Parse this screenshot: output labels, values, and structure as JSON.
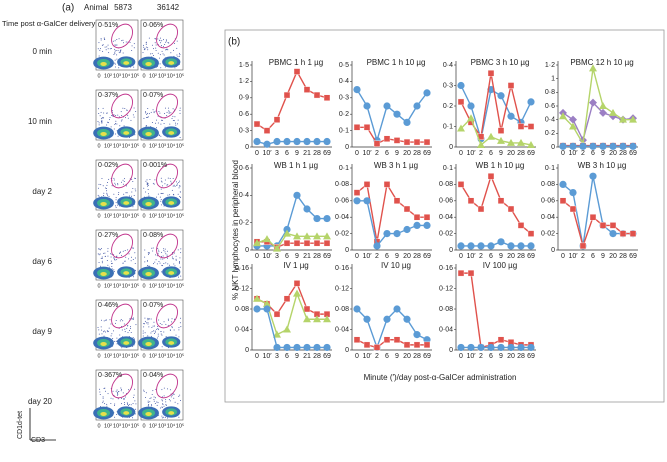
{
  "panel_a": {
    "label": "(a)",
    "animal_label": "Animal",
    "animals": [
      "5873",
      "36142"
    ],
    "time_header": "Time post α-GalCer delivery",
    "rows": [
      {
        "time": "0 min",
        "percents": [
          "0·51%",
          "0·06%"
        ]
      },
      {
        "time": "10 min",
        "percents": [
          "0·37%",
          "0·07%"
        ]
      },
      {
        "time": "day 2",
        "percents": [
          "0·02%",
          "0·001%"
        ]
      },
      {
        "time": "day 6",
        "percents": [
          "0·27%",
          "0·08%"
        ]
      },
      {
        "time": "day 9",
        "percents": [
          "0·46%",
          "0·07%"
        ]
      },
      {
        "time": "day 20",
        "percents": [
          "0·367%",
          "0·04%"
        ]
      }
    ],
    "y_axis_label": "CD1d-tet",
    "x_axis_label": "CD3",
    "x_tick_labels": [
      "0",
      "10²",
      "10³",
      "10⁴",
      "10⁵"
    ]
  },
  "panel_b": {
    "label": "(b)",
    "y_axis_label": "% NKT lymphocytes in peripheral blood",
    "x_axis_label": "Minute (′)/day post-α-GalCer administration"
  },
  "chart_data": [
    {
      "type": "line",
      "title": "PBMC 1 h 1 µg",
      "categories": [
        "0",
        "10′",
        "3",
        "6",
        "9",
        "21",
        "28",
        "69"
      ],
      "ylim": [
        0,
        1.5
      ],
      "yticks": [
        0,
        {
          "value": 0.3,
          "label": "0·3"
        },
        {
          "value": 0.6,
          "label": "0·6"
        },
        {
          "value": 0.9,
          "label": "0·9"
        },
        {
          "value": 1.2,
          "label": "1·2"
        },
        {
          "value": 1.5,
          "label": "1·5"
        }
      ],
      "series": [
        {
          "color": "#e0524c",
          "values": [
            0.42,
            0.3,
            0.5,
            0.95,
            1.38,
            1.05,
            0.95,
            0.9
          ]
        },
        {
          "color": "#5b9bd5",
          "values": [
            0.1,
            0.05,
            0.1,
            0.1,
            0.1,
            0.1,
            0.1,
            0.1
          ]
        }
      ]
    },
    {
      "type": "line",
      "title": "PBMC 1 h 10 µg",
      "categories": [
        "0",
        "10′",
        "2",
        "6",
        "9",
        "20",
        "28",
        "69"
      ],
      "ylim": [
        0,
        0.5
      ],
      "yticks": [
        0,
        {
          "value": 0.1,
          "label": "0·1"
        },
        {
          "value": 0.2,
          "label": "0·2"
        },
        {
          "value": 0.3,
          "label": "0·3"
        },
        {
          "value": 0.4,
          "label": "0·4"
        },
        {
          "value": 0.5,
          "label": "0·5"
        }
      ],
      "series": [
        {
          "color": "#5b9bd5",
          "values": [
            0.35,
            0.25,
            0.04,
            0.25,
            0.2,
            0.15,
            0.25,
            0.33
          ]
        },
        {
          "color": "#e0524c",
          "values": [
            0.12,
            0.12,
            0.02,
            0.05,
            0.04,
            0.03,
            0.03,
            0.03
          ]
        }
      ]
    },
    {
      "type": "line",
      "title": "PBMC 3 h 10 µg",
      "categories": [
        "0",
        "10′",
        "2",
        "6",
        "9",
        "20",
        "28",
        "69"
      ],
      "ylim": [
        0,
        0.4
      ],
      "yticks": [
        0,
        {
          "value": 0.1,
          "label": "0·1"
        },
        {
          "value": 0.2,
          "label": "0·2"
        },
        {
          "value": 0.3,
          "label": "0·3"
        },
        {
          "value": 0.4,
          "label": "0·4"
        }
      ],
      "series": [
        {
          "color": "#5b9bd5",
          "values": [
            0.3,
            0.2,
            0.04,
            0.28,
            0.25,
            0.15,
            0.12,
            0.22
          ]
        },
        {
          "color": "#e0524c",
          "values": [
            0.22,
            0.12,
            0.05,
            0.36,
            0.08,
            0.3,
            0.1,
            0.1
          ]
        },
        {
          "color": "#b5d46a",
          "values": [
            0.09,
            0.14,
            0.01,
            0.05,
            0.03,
            0.02,
            0.02,
            0.01
          ]
        }
      ]
    },
    {
      "type": "line",
      "title": "PBMC 12 h 10 µg",
      "categories": [
        "0",
        "10′",
        "2",
        "6",
        "9",
        "20",
        "28",
        "69"
      ],
      "ylim": [
        0,
        1.2
      ],
      "yticks": [
        0,
        {
          "value": 0.2,
          "label": "0·2"
        },
        {
          "value": 0.4,
          "label": "0·4"
        },
        {
          "value": 0.6,
          "label": "0·6"
        },
        {
          "value": 0.8,
          "label": "0·8"
        },
        1,
        {
          "value": 1.2,
          "label": "1·2"
        }
      ],
      "series": [
        {
          "color": "#9b7fc4",
          "values": [
            0.5,
            0.4,
            0.1,
            0.65,
            0.5,
            0.45,
            0.4,
            0.42
          ]
        },
        {
          "color": "#b5d46a",
          "values": [
            0.45,
            0.3,
            0.05,
            1.15,
            0.6,
            0.5,
            0.4,
            0.4
          ]
        },
        {
          "color": "#e0524c",
          "values": [
            0.02,
            0.02,
            0.02,
            0.02,
            0.02,
            0.02,
            0.02,
            0.02
          ]
        },
        {
          "color": "#5b9bd5",
          "values": [
            0.01,
            0.01,
            0.01,
            0.01,
            0.01,
            0.01,
            0.01,
            0.01
          ]
        }
      ]
    },
    {
      "type": "line",
      "title": "WB 1 h 1 µg",
      "categories": [
        "0",
        "10′",
        "3",
        "6",
        "9",
        "21",
        "28",
        "69"
      ],
      "ylim": [
        0,
        0.6
      ],
      "yticks": [
        0,
        {
          "value": 0.2,
          "label": "0·2"
        },
        {
          "value": 0.4,
          "label": "0·4"
        },
        {
          "value": 0.6,
          "label": "0·6"
        }
      ],
      "series": [
        {
          "color": "#5b9bd5",
          "values": [
            0.03,
            0.03,
            0.03,
            0.15,
            0.4,
            0.3,
            0.23,
            0.23
          ]
        },
        {
          "color": "#e0524c",
          "values": [
            0.06,
            0.06,
            0.02,
            0.05,
            0.05,
            0.05,
            0.05,
            0.05
          ]
        },
        {
          "color": "#b5d46a",
          "values": [
            0.05,
            0.08,
            0.01,
            0.12,
            0.1,
            0.1,
            0.1,
            0.1
          ]
        }
      ]
    },
    {
      "type": "line",
      "title": "WB 3 h 1 µg",
      "categories": [
        "0",
        "10′",
        "2",
        "6",
        "9",
        "20",
        "28",
        "69"
      ],
      "ylim": [
        0,
        0.1
      ],
      "yticks": [
        0,
        {
          "value": 0.02,
          "label": "0·02"
        },
        {
          "value": 0.04,
          "label": "0·04"
        },
        {
          "value": 0.06,
          "label": "0·06"
        },
        {
          "value": 0.08,
          "label": "0·08"
        },
        {
          "value": 0.1,
          "label": "0·1"
        }
      ],
      "series": [
        {
          "color": "#e0524c",
          "values": [
            0.07,
            0.08,
            0.01,
            0.08,
            0.06,
            0.05,
            0.04,
            0.04
          ]
        },
        {
          "color": "#5b9bd5",
          "values": [
            0.06,
            0.06,
            0.005,
            0.02,
            0.02,
            0.025,
            0.03,
            0.03
          ]
        }
      ]
    },
    {
      "type": "line",
      "title": "WB 1 h 10 µg",
      "categories": [
        "0",
        "10′",
        "2",
        "6",
        "9",
        "20",
        "28",
        "69"
      ],
      "ylim": [
        0,
        0.1
      ],
      "yticks": [
        0,
        {
          "value": 0.02,
          "label": "0·02"
        },
        {
          "value": 0.04,
          "label": "0·04"
        },
        {
          "value": 0.06,
          "label": "0·06"
        },
        {
          "value": 0.08,
          "label": "0·08"
        },
        {
          "value": 0.1,
          "label": "0·1"
        }
      ],
      "series": [
        {
          "color": "#e0524c",
          "values": [
            0.08,
            0.06,
            0.05,
            0.09,
            0.06,
            0.05,
            0.03,
            0.02
          ]
        },
        {
          "color": "#5b9bd5",
          "values": [
            0.005,
            0.005,
            0.005,
            0.005,
            0.01,
            0.005,
            0.005,
            0.005
          ]
        }
      ]
    },
    {
      "type": "line",
      "title": "WB 3 h 10 µg",
      "categories": [
        "0",
        "10′",
        "2",
        "6",
        "9",
        "20",
        "28",
        "69"
      ],
      "ylim": [
        0,
        0.1
      ],
      "yticks": [
        0,
        {
          "value": 0.02,
          "label": "0·02"
        },
        {
          "value": 0.04,
          "label": "0·04"
        },
        {
          "value": 0.06,
          "label": "0·06"
        },
        {
          "value": 0.08,
          "label": "0·08"
        },
        {
          "value": 0.1,
          "label": "0·1"
        }
      ],
      "series": [
        {
          "color": "#5b9bd5",
          "values": [
            0.08,
            0.07,
            0.005,
            0.09,
            0.03,
            0.02,
            0.02,
            0.02
          ]
        },
        {
          "color": "#e0524c",
          "values": [
            0.06,
            0.05,
            0.005,
            0.04,
            0.03,
            0.03,
            0.02,
            0.02
          ]
        }
      ]
    },
    {
      "type": "line",
      "title": "IV 1 µg",
      "categories": [
        "0",
        "10′",
        "3",
        "6",
        "9",
        "21",
        "28",
        "69"
      ],
      "ylim": [
        0,
        0.16
      ],
      "yticks": [
        0,
        {
          "value": 0.04,
          "label": "0·04"
        },
        {
          "value": 0.08,
          "label": "0·08"
        },
        {
          "value": 0.12,
          "label": "0·12"
        },
        {
          "value": 0.16,
          "label": "0·16"
        }
      ],
      "series": [
        {
          "color": "#e0524c",
          "values": [
            0.1,
            0.09,
            0.07,
            0.1,
            0.13,
            0.08,
            0.07,
            0.07
          ]
        },
        {
          "color": "#b5d46a",
          "values": [
            0.1,
            0.09,
            0.03,
            0.04,
            0.11,
            0.06,
            0.06,
            0.06
          ]
        },
        {
          "color": "#5b9bd5",
          "values": [
            0.08,
            0.08,
            0.005,
            0.005,
            0.005,
            0.005,
            0.005,
            0.005
          ]
        }
      ]
    },
    {
      "type": "line",
      "title": "IV 10 µg",
      "categories": [
        "0",
        "10′",
        "2",
        "6",
        "9",
        "20",
        "28",
        "69"
      ],
      "ylim": [
        0,
        0.16
      ],
      "yticks": [
        0,
        {
          "value": 0.04,
          "label": "0·04"
        },
        {
          "value": 0.08,
          "label": "0·08"
        },
        {
          "value": 0.12,
          "label": "0·12"
        },
        {
          "value": 0.16,
          "label": "0·16"
        }
      ],
      "series": [
        {
          "color": "#5b9bd5",
          "values": [
            0.08,
            0.06,
            0.005,
            0.06,
            0.08,
            0.06,
            0.03,
            0.02
          ]
        },
        {
          "color": "#e0524c",
          "values": [
            0.02,
            0.01,
            0.005,
            0.02,
            0.02,
            0.01,
            0.01,
            0.01
          ]
        }
      ]
    },
    {
      "type": "line",
      "title": "IV 100 µg",
      "categories": [
        "0",
        "10′",
        "2",
        "6",
        "9",
        "20",
        "28",
        "69"
      ],
      "ylim": [
        0,
        0.16
      ],
      "yticks": [
        0,
        {
          "value": 0.04,
          "label": "0·04"
        },
        {
          "value": 0.08,
          "label": "0·08"
        },
        {
          "value": 0.12,
          "label": "0·12"
        },
        {
          "value": 0.16,
          "label": "0·16"
        }
      ],
      "series": [
        {
          "color": "#e0524c",
          "values": [
            0.15,
            0.15,
            0.005,
            0.01,
            0.02,
            0.015,
            0.01,
            0.01
          ]
        },
        {
          "color": "#5b9bd5",
          "values": [
            0.005,
            0.005,
            0.005,
            0.005,
            0.005,
            0.005,
            0.005,
            0.005
          ]
        }
      ]
    }
  ]
}
